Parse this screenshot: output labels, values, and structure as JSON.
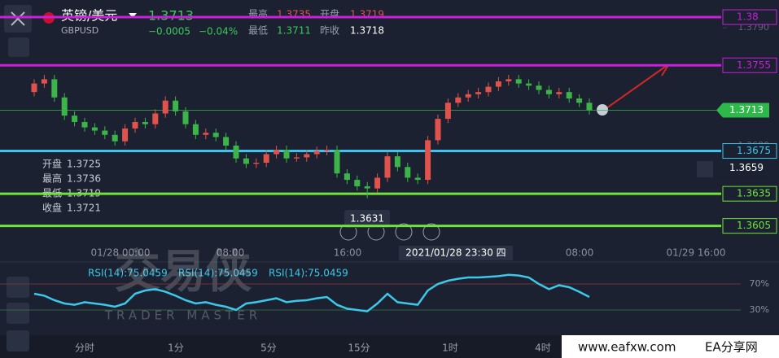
{
  "header": {
    "symbol": "英镑/美元",
    "code": "GBPUSD",
    "price": "1.3713",
    "change": "−0.0005",
    "change_pct": "−0.04%",
    "stats": [
      {
        "label": "最高",
        "value": "1.3735"
      },
      {
        "label": "开盘",
        "value": "1.3719"
      },
      {
        "label": "最低",
        "value": "1.3711"
      },
      {
        "label": "昨收",
        "value": "1.3718"
      }
    ]
  },
  "ohlc_info": [
    {
      "label": "开盘",
      "value": "1.3725"
    },
    {
      "label": "最高",
      "value": "1.3736"
    },
    {
      "label": "最低",
      "value": "1.3719"
    },
    {
      "label": "收盘",
      "value": "1.3721"
    }
  ],
  "chart_data": [
    {
      "type": "candlestick",
      "ylim": [
        1.3588,
        1.3816
      ],
      "yticks": [
        {
          "value": 1.379,
          "label": "1.3790"
        },
        {
          "value": 1.368,
          "label": "1.3680"
        }
      ],
      "up_color": "#e0524c",
      "down_color": "#3cb44a",
      "candles": [
        [
          1.373,
          1.3742,
          1.3726,
          1.3738
        ],
        [
          1.3738,
          1.3746,
          1.3734,
          1.3742
        ],
        [
          1.3742,
          1.3746,
          1.3721,
          1.3725
        ],
        [
          1.3725,
          1.3729,
          1.3704,
          1.3708
        ],
        [
          1.3708,
          1.3712,
          1.3698,
          1.3702
        ],
        [
          1.3702,
          1.3706,
          1.3693,
          1.3697
        ],
        [
          1.3697,
          1.3701,
          1.369,
          1.3694
        ],
        [
          1.3694,
          1.3698,
          1.3686,
          1.369
        ],
        [
          1.369,
          1.3694,
          1.368,
          1.3684
        ],
        [
          1.3684,
          1.37,
          1.368,
          1.3696
        ],
        [
          1.3696,
          1.3706,
          1.3692,
          1.3702
        ],
        [
          1.3702,
          1.3706,
          1.3696,
          1.37
        ],
        [
          1.37,
          1.3714,
          1.3696,
          1.371
        ],
        [
          1.371,
          1.3726,
          1.3706,
          1.3722
        ],
        [
          1.3722,
          1.3726,
          1.3708,
          1.3712
        ],
        [
          1.3712,
          1.3716,
          1.3696,
          1.37
        ],
        [
          1.37,
          1.3704,
          1.3686,
          1.369
        ],
        [
          1.369,
          1.3696,
          1.3686,
          1.3692
        ],
        [
          1.3692,
          1.3696,
          1.3684,
          1.3688
        ],
        [
          1.3688,
          1.3692,
          1.3676,
          1.368
        ],
        [
          1.368,
          1.3684,
          1.3664,
          1.3668
        ],
        [
          1.3668,
          1.3672,
          1.3659,
          1.3663
        ],
        [
          1.3663,
          1.3668,
          1.3659,
          1.3664
        ],
        [
          1.3664,
          1.3676,
          1.366,
          1.3672
        ],
        [
          1.3672,
          1.368,
          1.3668,
          1.3676
        ],
        [
          1.3676,
          1.368,
          1.3664,
          1.3668
        ],
        [
          1.3668,
          1.3673,
          1.3665,
          1.3669
        ],
        [
          1.3669,
          1.3676,
          1.3665,
          1.3672
        ],
        [
          1.3672,
          1.3679,
          1.3668,
          1.3675
        ],
        [
          1.3675,
          1.368,
          1.3671,
          1.3676
        ],
        [
          1.3676,
          1.368,
          1.365,
          1.3654
        ],
        [
          1.3654,
          1.3658,
          1.3644,
          1.3648
        ],
        [
          1.3648,
          1.3652,
          1.3638,
          1.3642
        ],
        [
          1.3642,
          1.3646,
          1.3631,
          1.364
        ],
        [
          1.364,
          1.3654,
          1.3636,
          1.365
        ],
        [
          1.365,
          1.3674,
          1.3646,
          1.367
        ],
        [
          1.367,
          1.3674,
          1.3656,
          1.366
        ],
        [
          1.366,
          1.3664,
          1.3646,
          1.365
        ],
        [
          1.365,
          1.3654,
          1.3644,
          1.3648
        ],
        [
          1.3648,
          1.3689,
          1.3644,
          1.3685
        ],
        [
          1.3685,
          1.3709,
          1.3681,
          1.3705
        ],
        [
          1.3705,
          1.3724,
          1.3701,
          1.372
        ],
        [
          1.372,
          1.3729,
          1.3716,
          1.3725
        ],
        [
          1.3725,
          1.3732,
          1.3721,
          1.3728
        ],
        [
          1.3728,
          1.3734,
          1.3724,
          1.373
        ],
        [
          1.373,
          1.3739,
          1.3726,
          1.3735
        ],
        [
          1.3735,
          1.3744,
          1.3731,
          1.374
        ],
        [
          1.374,
          1.3746,
          1.3736,
          1.3742
        ],
        [
          1.3742,
          1.3746,
          1.3734,
          1.3738
        ],
        [
          1.3738,
          1.3742,
          1.3732,
          1.3736
        ],
        [
          1.3736,
          1.374,
          1.3728,
          1.3732
        ],
        [
          1.3732,
          1.3736,
          1.3724,
          1.3728
        ],
        [
          1.3728,
          1.3734,
          1.3724,
          1.373
        ],
        [
          1.373,
          1.3734,
          1.372,
          1.3724
        ],
        [
          1.3724,
          1.3728,
          1.3716,
          1.372
        ],
        [
          1.372,
          1.3724,
          1.3709,
          1.3713
        ]
      ],
      "levels": [
        {
          "value": 1.38,
          "color": "#c81fd8"
        },
        {
          "value": 1.3755,
          "color": "#c81fd8"
        },
        {
          "value": 1.3675,
          "color": "#3cc4ee"
        },
        {
          "value": 1.3635,
          "color": "#6fe23c"
        },
        {
          "value": 1.3605,
          "color": "#6fe23c"
        }
      ],
      "last_price": 1.3713,
      "last_price_color": "#2fb84a",
      "alert_price": 1.3659,
      "low_marker": "1.3631",
      "time_labels": [
        "01/28 00:00",
        "08:00",
        "16:00",
        "08:00",
        "01/29 16:00"
      ],
      "crosshair_time": "2021/01/28 23:30 四"
    },
    {
      "type": "line",
      "ylim": [
        0,
        100
      ],
      "yticks": [
        {
          "value": 70,
          "label": "70%"
        },
        {
          "value": 30,
          "label": "30%"
        }
      ],
      "series": [
        {
          "name": "RSI(14):75.0459",
          "color": "#3cc8e8",
          "values": [
            55,
            52,
            45,
            40,
            38,
            42,
            40,
            38,
            35,
            40,
            55,
            60,
            62,
            58,
            52,
            45,
            40,
            42,
            38,
            35,
            30,
            40,
            42,
            45,
            48,
            42,
            44,
            45,
            48,
            50,
            38,
            32,
            30,
            28,
            40,
            55,
            42,
            40,
            38,
            60,
            70,
            75,
            78,
            80,
            80,
            81,
            82,
            84,
            83,
            80,
            70,
            62,
            68,
            65,
            58,
            50
          ]
        }
      ]
    }
  ],
  "timeframes": [
    "分时",
    "1分",
    "5分",
    "15分",
    "1时",
    "4时"
  ],
  "watermark": {
    "title": "交易侠",
    "subtitle": "TRADER MASTER",
    "site": "www.eafxw.com",
    "brand": "EA分享网"
  }
}
